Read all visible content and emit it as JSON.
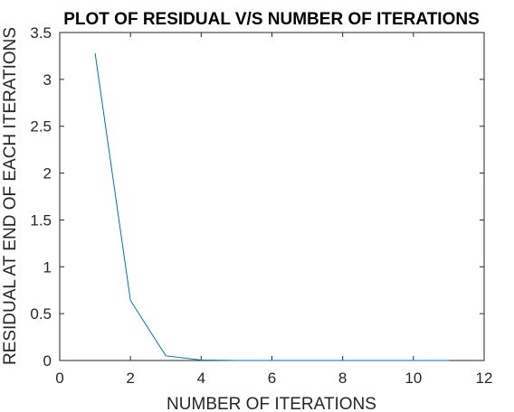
{
  "chart_data": {
    "type": "line",
    "title": "PLOT OF RESIDUAL V/S NUMBER OF ITERATIONS",
    "xlabel": "NUMBER OF ITERATIONS",
    "ylabel": "RESIDUAL AT END OF EACH ITERATIONS",
    "xlim": [
      0,
      12
    ],
    "ylim": [
      0,
      3.5
    ],
    "x_ticks": [
      "0",
      "2",
      "4",
      "6",
      "8",
      "10",
      "12"
    ],
    "y_ticks": [
      "0",
      "0.5",
      "1",
      "1.5",
      "2",
      "2.5",
      "3",
      "3.5"
    ],
    "grid": false,
    "series": [
      {
        "color": "#0072BD",
        "x": [
          1,
          2,
          3,
          4,
          5,
          6,
          7,
          8,
          9,
          10,
          11
        ],
        "y": [
          3.28,
          0.64,
          0.05,
          0.005,
          0.0005,
          0.0001,
          0,
          0,
          0,
          0,
          0
        ]
      }
    ]
  }
}
